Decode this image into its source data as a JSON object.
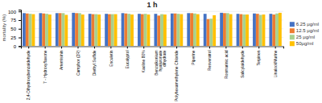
{
  "chart_data": {
    "type": "bar",
    "title": "1 h",
    "ylabel": "mortality (%)",
    "categories": [
      "2,4-Dihydroxybenzaldehyde",
      "7 - Hydroxyflavone",
      "Artemisinin",
      "Camphor (2R)",
      "Diethyl Sulfide",
      "Esculetin",
      "Eucalyptol",
      "Kaoline 80%",
      "Benzalkonium\nhyaluronate\ndihydrate",
      "Polyhexamethylene Chloride",
      "Piperine",
      "Resveratrol",
      "Rosmarinic acid",
      "Salicylaldehyde",
      "Terpinen",
      "Linalool/Murine"
    ],
    "series": [
      {
        "name": "6.25 μg/ml",
        "color": "#4472C4",
        "values": [
          95,
          95,
          95,
          96,
          93,
          93,
          95,
          93,
          93,
          94,
          95,
          93,
          96,
          93,
          94,
          93
        ]
      },
      {
        "name": "12.5 μg/ml",
        "color": "#ED7D31",
        "values": [
          94,
          94,
          95,
          95,
          92,
          92,
          94,
          92,
          88,
          94,
          95,
          78,
          95,
          92,
          93,
          91
        ]
      },
      {
        "name": "25 μg/ml",
        "color": "#A9D18E",
        "values": [
          93,
          93,
          95,
          95,
          92,
          92,
          93,
          93,
          92,
          93,
          94,
          79,
          95,
          91,
          90,
          94
        ]
      },
      {
        "name": "50μg/ml",
        "color": "#FFC000",
        "values": [
          92,
          91,
          90,
          91,
          91,
          92,
          91,
          91,
          91,
          92,
          92,
          89,
          92,
          91,
          91,
          96
        ]
      }
    ],
    "ylim": [
      0,
      105
    ],
    "yticks": [
      0,
      25,
      50,
      75,
      100
    ],
    "grid": true,
    "legend": "lower right"
  }
}
